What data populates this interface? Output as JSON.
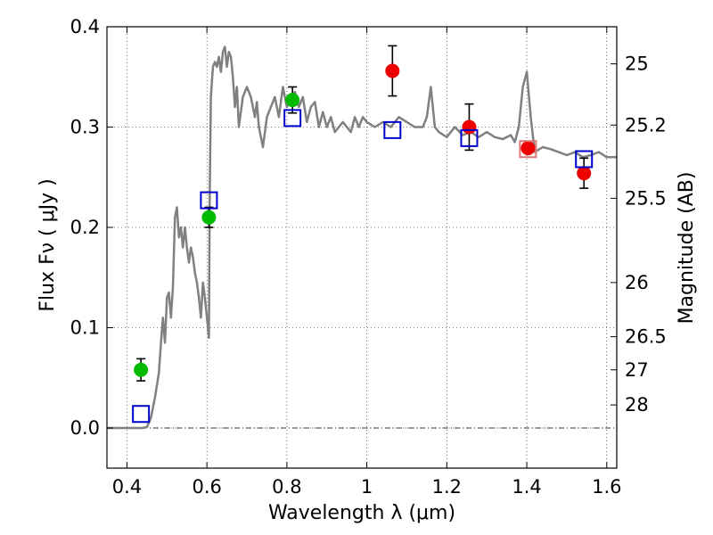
{
  "chart_data": {
    "type": "scatter",
    "xlabel": "Wavelength  λ (μm)",
    "ylabel": "Flux  Fν  ( μJy )",
    "ylabel_right": "Magnitude (AB)",
    "xlim": [
      0.35,
      1.625
    ],
    "ylim": [
      -0.04,
      0.4
    ],
    "grid": true,
    "x_ticks": [
      0.4,
      0.6,
      0.8,
      1.0,
      1.2,
      1.4,
      1.6
    ],
    "x_tick_labels": [
      "0.4",
      "0.6",
      "0.8",
      "1",
      "1.2",
      "1.4",
      "1.6"
    ],
    "y_ticks": [
      0.0,
      0.1,
      0.2,
      0.3,
      0.4
    ],
    "y_tick_labels": [
      "0.0",
      "0.1",
      "0.2",
      "0.3",
      "0.4"
    ],
    "right_ticks": [
      {
        "label": "25",
        "flux": 0.363
      },
      {
        "label": "25.2",
        "flux": 0.302
      },
      {
        "label": "25.5",
        "flux": 0.229
      },
      {
        "label": "26",
        "flux": 0.145
      },
      {
        "label": "26.5",
        "flux": 0.091
      },
      {
        "label": "27",
        "flux": 0.058
      },
      {
        "label": "28",
        "flux": 0.023
      }
    ],
    "reference_line": {
      "y": 0.0,
      "style": "dash-dot"
    },
    "colors": {
      "model": "#808080",
      "green": "#00bb00",
      "red": "#ee0000",
      "square": "#0000cc",
      "square_pink": "#dd7777"
    },
    "model_spectrum": {
      "x": [
        0.35,
        0.44,
        0.45,
        0.46,
        0.47,
        0.48,
        0.485,
        0.49,
        0.495,
        0.5,
        0.505,
        0.51,
        0.515,
        0.52,
        0.525,
        0.53,
        0.535,
        0.54,
        0.545,
        0.55,
        0.555,
        0.56,
        0.565,
        0.57,
        0.575,
        0.58,
        0.585,
        0.59,
        0.595,
        0.6,
        0.605,
        0.607,
        0.61,
        0.615,
        0.62,
        0.625,
        0.63,
        0.635,
        0.64,
        0.645,
        0.65,
        0.655,
        0.66,
        0.665,
        0.67,
        0.675,
        0.68,
        0.69,
        0.7,
        0.71,
        0.72,
        0.725,
        0.73,
        0.74,
        0.75,
        0.76,
        0.77,
        0.78,
        0.79,
        0.8,
        0.81,
        0.82,
        0.83,
        0.84,
        0.85,
        0.86,
        0.87,
        0.88,
        0.89,
        0.9,
        0.91,
        0.92,
        0.93,
        0.94,
        0.95,
        0.96,
        0.97,
        0.98,
        0.99,
        1.0,
        1.02,
        1.04,
        1.06,
        1.08,
        1.1,
        1.12,
        1.14,
        1.15,
        1.16,
        1.17,
        1.18,
        1.2,
        1.22,
        1.24,
        1.26,
        1.28,
        1.3,
        1.32,
        1.34,
        1.36,
        1.37,
        1.38,
        1.39,
        1.4,
        1.41,
        1.42,
        1.44,
        1.46,
        1.48,
        1.5,
        1.52,
        1.54,
        1.56,
        1.58,
        1.6,
        1.625
      ],
      "y": [
        0.0,
        0.0,
        0.001,
        0.01,
        0.03,
        0.055,
        0.085,
        0.11,
        0.085,
        0.13,
        0.135,
        0.11,
        0.14,
        0.21,
        0.22,
        0.19,
        0.2,
        0.18,
        0.2,
        0.18,
        0.165,
        0.18,
        0.17,
        0.155,
        0.145,
        0.13,
        0.11,
        0.145,
        0.13,
        0.11,
        0.09,
        0.23,
        0.33,
        0.36,
        0.365,
        0.36,
        0.37,
        0.355,
        0.375,
        0.38,
        0.36,
        0.375,
        0.37,
        0.35,
        0.32,
        0.34,
        0.3,
        0.33,
        0.34,
        0.33,
        0.31,
        0.325,
        0.3,
        0.28,
        0.31,
        0.32,
        0.33,
        0.31,
        0.34,
        0.32,
        0.33,
        0.335,
        0.32,
        0.33,
        0.305,
        0.32,
        0.325,
        0.3,
        0.315,
        0.3,
        0.31,
        0.295,
        0.3,
        0.305,
        0.3,
        0.295,
        0.31,
        0.3,
        0.31,
        0.305,
        0.3,
        0.305,
        0.3,
        0.31,
        0.305,
        0.3,
        0.3,
        0.31,
        0.34,
        0.3,
        0.295,
        0.29,
        0.3,
        0.292,
        0.295,
        0.29,
        0.295,
        0.29,
        0.288,
        0.292,
        0.285,
        0.3,
        0.34,
        0.355,
        0.31,
        0.275,
        0.28,
        0.278,
        0.275,
        0.272,
        0.275,
        0.27,
        0.272,
        0.275,
        0.27,
        0.27
      ]
    },
    "series": [
      {
        "marker": "circle",
        "color": "green",
        "points": [
          {
            "x": 0.435,
            "y": 0.058,
            "err": 0.011
          },
          {
            "x": 0.605,
            "y": 0.21,
            "err": 0.01
          },
          {
            "x": 0.814,
            "y": 0.327,
            "err": 0.013
          }
        ]
      },
      {
        "marker": "circle",
        "color": "red",
        "points": [
          {
            "x": 1.064,
            "y": 0.356,
            "err": 0.025
          },
          {
            "x": 1.256,
            "y": 0.3,
            "err": 0.023
          },
          {
            "x": 1.403,
            "y": 0.279,
            "err": 0.0
          },
          {
            "x": 1.543,
            "y": 0.254,
            "err": 0.015
          }
        ]
      },
      {
        "marker": "square",
        "color": "square",
        "points": [
          {
            "x": 0.435,
            "y": 0.014
          },
          {
            "x": 0.605,
            "y": 0.227
          },
          {
            "x": 0.814,
            "y": 0.309
          },
          {
            "x": 1.064,
            "y": 0.297
          },
          {
            "x": 1.256,
            "y": 0.289
          },
          {
            "x": 1.403,
            "y": 0.278,
            "color": "square_pink"
          },
          {
            "x": 1.543,
            "y": 0.268
          }
        ]
      }
    ]
  }
}
